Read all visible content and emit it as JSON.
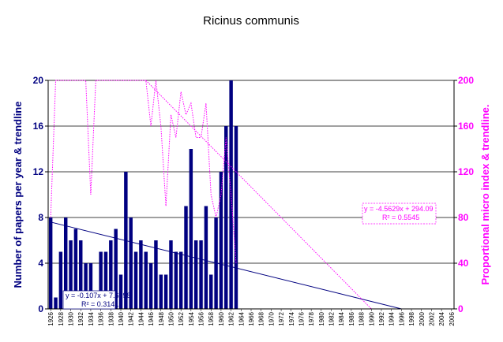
{
  "chart_data": {
    "type": "bar",
    "title": "Ricinus communis",
    "y_left": {
      "label": "Number of papers per year & trendline",
      "range": [
        0,
        20
      ],
      "ticks": [
        0,
        4,
        8,
        12,
        16,
        20
      ],
      "color": "#000080"
    },
    "y_right": {
      "label": "Proportional micro index & trendline.",
      "range": [
        0,
        200
      ],
      "ticks": [
        0,
        40,
        80,
        120,
        160,
        200
      ],
      "color": "#ff00ff"
    },
    "x": {
      "range": [
        1925.5,
        2006.5
      ],
      "tick_labels": [
        "1926",
        "1928",
        "1930",
        "1932",
        "1934",
        "1936",
        "1938",
        "1940",
        "1942",
        "1944",
        "1946",
        "1948",
        "1950",
        "1952",
        "1954",
        "1956",
        "1958",
        "1960",
        "1962",
        "1964",
        "1966",
        "1968",
        "1970",
        "1972",
        "1974",
        "1976",
        "1978",
        "1980",
        "1982",
        "1984",
        "1986",
        "1988",
        "1990",
        "1992",
        "1994",
        "1996",
        "1998",
        "2000",
        "2002",
        "2004",
        "2006"
      ]
    },
    "grid": true,
    "series": [
      {
        "kind": "bar",
        "axis": "left",
        "color": "#000080",
        "years": [
          1926,
          1927,
          1928,
          1929,
          1930,
          1931,
          1932,
          1933,
          1934,
          1935,
          1936,
          1937,
          1938,
          1939,
          1940,
          1941,
          1942,
          1943,
          1944,
          1945,
          1946,
          1947,
          1948,
          1949,
          1950,
          1951,
          1952,
          1953,
          1954,
          1955,
          1956,
          1957,
          1958,
          1959,
          1960,
          1961,
          1962,
          1963
        ],
        "values": [
          8,
          1,
          5,
          8,
          6,
          7,
          6,
          4,
          4,
          0,
          5,
          5,
          6,
          7,
          3,
          12,
          8,
          5,
          6,
          5,
          4,
          6,
          3,
          3,
          6,
          5,
          5,
          9,
          14,
          6,
          6,
          9,
          3,
          8,
          12,
          16,
          20,
          16
        ]
      },
      {
        "kind": "line",
        "axis": "right",
        "color": "#ff00ff",
        "style": "dotted",
        "years": [
          1926,
          1927,
          1928,
          1929,
          1930,
          1931,
          1932,
          1933,
          1934,
          1935,
          1936,
          1937,
          1938,
          1939,
          1940,
          1941,
          1942,
          1943,
          1944,
          1945,
          1946,
          1947,
          1948,
          1949,
          1950,
          1951,
          1952,
          1953,
          1954,
          1955,
          1956,
          1957,
          1958,
          1959,
          1960,
          1961,
          1962,
          1963
        ],
        "values": [
          80,
          200,
          200,
          200,
          200,
          200,
          200,
          200,
          100,
          200,
          200,
          200,
          200,
          200,
          200,
          200,
          200,
          200,
          200,
          200,
          160,
          200,
          160,
          90,
          170,
          150,
          190,
          170,
          180,
          150,
          150,
          180,
          100,
          80,
          100,
          150,
          100,
          40
        ]
      },
      {
        "kind": "trendline",
        "axis": "left",
        "color": "#000080",
        "style": "solid",
        "from": [
          1926,
          7.6
        ],
        "to": [
          1996,
          0
        ],
        "equation": "y = -0.107x + 7.6198",
        "r2": "R² = 0.3141"
      },
      {
        "kind": "trendline",
        "axis": "right",
        "color": "#ff00ff",
        "style": "dotted",
        "from": [
          1945,
          200
        ],
        "to": [
          1990,
          0
        ],
        "equation": "y = -4.5629x + 294.09",
        "r2": "R² = 0.5545"
      }
    ]
  }
}
